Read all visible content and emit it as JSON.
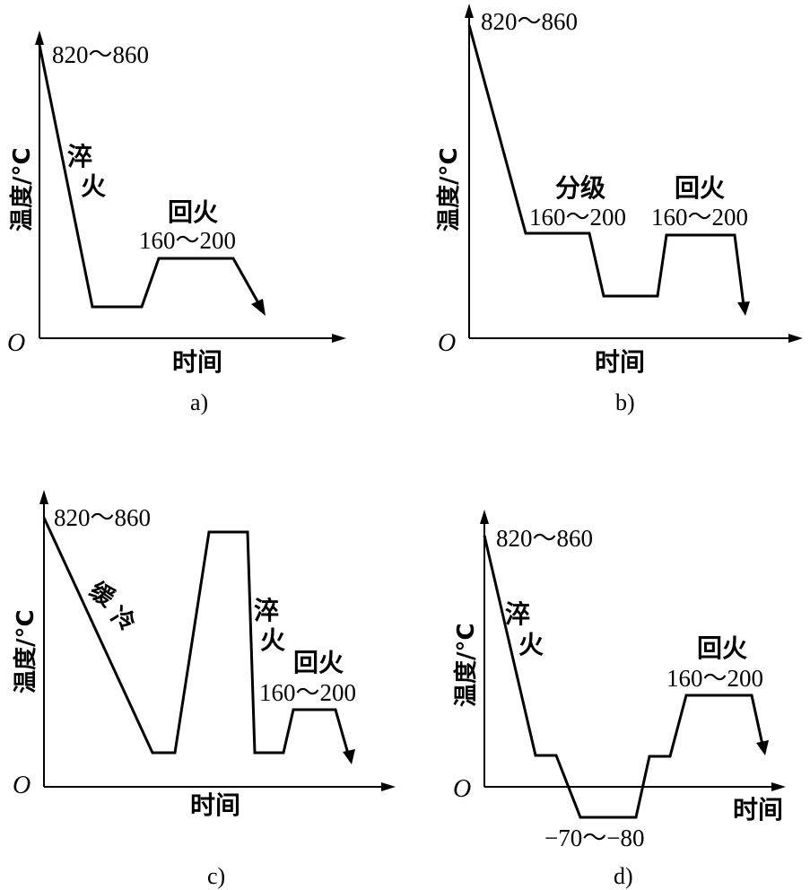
{
  "panels": [
    {
      "id": "a",
      "caption": "a)",
      "origin": "O",
      "ylabel": "温度/°C",
      "xlabel": "时间",
      "start_temp": "820～860",
      "quench": [
        "淬",
        "火"
      ],
      "temper_label": "回火",
      "temper_range": "160～200"
    },
    {
      "id": "b",
      "caption": "b)",
      "origin": "O",
      "ylabel": "温度/°C",
      "xlabel": "时间",
      "start_temp": "820～860",
      "step_label": "分级",
      "step_range": "160～200",
      "temper_label": "回火",
      "temper_range": "160～200"
    },
    {
      "id": "c",
      "caption": "c)",
      "origin": "O",
      "ylabel": "温度/°C",
      "xlabel": "时间",
      "start_temp": "820～860",
      "slow_cool": [
        "缓",
        "冷"
      ],
      "quench": [
        "淬",
        "火"
      ],
      "temper_label": "回火",
      "temper_range": "160～200"
    },
    {
      "id": "d",
      "caption": "d)",
      "origin": "O",
      "ylabel": "温度/°C",
      "xlabel": "时间",
      "start_temp": "820～860",
      "quench": [
        "淬",
        "火"
      ],
      "temper_label": "回火",
      "temper_range": "160～200",
      "subzero_range": "−70～−80"
    }
  ]
}
